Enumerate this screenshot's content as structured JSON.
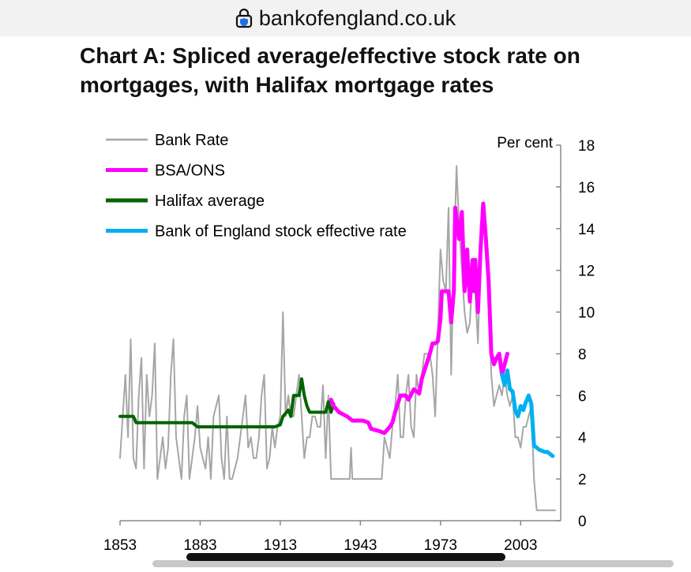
{
  "browser": {
    "url": "bankofengland.co.uk",
    "lock_icon": "lock-shield-icon"
  },
  "page": {
    "title": "Chart A: Spliced average/effective stock rate on mortgages, with Halifax mortgage rates"
  },
  "chart_data": {
    "type": "line",
    "ylabel": "Per cent",
    "xlim": [
      1853,
      2018
    ],
    "ylim": [
      0,
      18
    ],
    "x_ticks": [
      "1853",
      "1883",
      "1913",
      "1943",
      "1973",
      "2003"
    ],
    "y_ticks": [
      "0",
      "2",
      "4",
      "6",
      "8",
      "10",
      "12",
      "14",
      "16",
      "18"
    ],
    "legend_position": "top-left",
    "grid": false,
    "series": [
      {
        "name": "Bank Rate",
        "color": "#a6a6a6",
        "width": 2,
        "points": [
          [
            1853,
            3
          ],
          [
            1854,
            5
          ],
          [
            1855,
            7
          ],
          [
            1856,
            4
          ],
          [
            1857,
            8.7
          ],
          [
            1858,
            3
          ],
          [
            1859,
            2.5
          ],
          [
            1860,
            6
          ],
          [
            1861,
            7.8
          ],
          [
            1862,
            2.5
          ],
          [
            1863,
            7
          ],
          [
            1864,
            5
          ],
          [
            1865,
            6
          ],
          [
            1866,
            8.5
          ],
          [
            1867,
            2
          ],
          [
            1868,
            3
          ],
          [
            1869,
            4
          ],
          [
            1870,
            2.5
          ],
          [
            1871,
            3.5
          ],
          [
            1872,
            7
          ],
          [
            1873,
            8.7
          ],
          [
            1874,
            4
          ],
          [
            1875,
            3
          ],
          [
            1876,
            2
          ],
          [
            1877,
            5
          ],
          [
            1878,
            6
          ],
          [
            1879,
            2
          ],
          [
            1880,
            3
          ],
          [
            1881,
            4
          ],
          [
            1882,
            5.5
          ],
          [
            1883,
            3.5
          ],
          [
            1884,
            3
          ],
          [
            1885,
            2.5
          ],
          [
            1886,
            4
          ],
          [
            1887,
            2
          ],
          [
            1888,
            5
          ],
          [
            1889,
            5.5
          ],
          [
            1890,
            6
          ],
          [
            1891,
            3
          ],
          [
            1892,
            2
          ],
          [
            1893,
            5
          ],
          [
            1894,
            2
          ],
          [
            1895,
            2
          ],
          [
            1896,
            2.5
          ],
          [
            1897,
            3
          ],
          [
            1898,
            4
          ],
          [
            1899,
            5
          ],
          [
            1900,
            6
          ],
          [
            1901,
            3.5
          ],
          [
            1902,
            4
          ],
          [
            1903,
            3
          ],
          [
            1904,
            3
          ],
          [
            1905,
            4
          ],
          [
            1906,
            6
          ],
          [
            1907,
            7
          ],
          [
            1908,
            2.5
          ],
          [
            1909,
            3
          ],
          [
            1910,
            4.5
          ],
          [
            1911,
            3.5
          ],
          [
            1912,
            4.5
          ],
          [
            1913,
            5
          ],
          [
            1914,
            10
          ],
          [
            1915,
            5
          ],
          [
            1916,
            6
          ],
          [
            1917,
            5
          ],
          [
            1918,
            5
          ],
          [
            1919,
            6
          ],
          [
            1920,
            7
          ],
          [
            1921,
            5
          ],
          [
            1922,
            3
          ],
          [
            1923,
            4
          ],
          [
            1924,
            4
          ],
          [
            1925,
            5
          ],
          [
            1926,
            5
          ],
          [
            1927,
            4.5
          ],
          [
            1928,
            4.5
          ],
          [
            1929,
            6.5
          ],
          [
            1930,
            3
          ],
          [
            1931,
            6
          ],
          [
            1932,
            2
          ],
          [
            1939,
            2
          ],
          [
            1939.5,
            3.5
          ],
          [
            1940,
            2
          ],
          [
            1951,
            2
          ],
          [
            1952,
            4
          ],
          [
            1953,
            3.5
          ],
          [
            1954,
            3
          ],
          [
            1955,
            4.5
          ],
          [
            1956,
            5.5
          ],
          [
            1957,
            7
          ],
          [
            1958,
            4
          ],
          [
            1959,
            4
          ],
          [
            1960,
            6
          ],
          [
            1961,
            7
          ],
          [
            1962,
            4.5
          ],
          [
            1963,
            4
          ],
          [
            1964,
            7
          ],
          [
            1965,
            6
          ],
          [
            1966,
            7
          ],
          [
            1967,
            8
          ],
          [
            1968,
            8
          ],
          [
            1969,
            8
          ],
          [
            1970,
            7
          ],
          [
            1971,
            5
          ],
          [
            1972,
            9
          ],
          [
            1973,
            13
          ],
          [
            1974,
            11.5
          ],
          [
            1975,
            11
          ],
          [
            1976,
            15
          ],
          [
            1977,
            7
          ],
          [
            1978,
            12.5
          ],
          [
            1979,
            17
          ],
          [
            1980,
            14
          ],
          [
            1981,
            12
          ],
          [
            1982,
            10
          ],
          [
            1983,
            9
          ],
          [
            1984,
            9.5
          ],
          [
            1985,
            12
          ],
          [
            1986,
            11
          ],
          [
            1987,
            8.5
          ],
          [
            1988,
            13
          ],
          [
            1989,
            15
          ],
          [
            1990,
            14
          ],
          [
            1991,
            10.5
          ],
          [
            1992,
            7
          ],
          [
            1993,
            5.5
          ],
          [
            1994,
            6
          ],
          [
            1995,
            6.5
          ],
          [
            1996,
            6
          ],
          [
            1997,
            7
          ],
          [
            1998,
            6
          ],
          [
            1999,
            5.5
          ],
          [
            2000,
            6
          ],
          [
            2001,
            4
          ],
          [
            2002,
            4
          ],
          [
            2003,
            3.5
          ],
          [
            2004,
            4.5
          ],
          [
            2005,
            4.5
          ],
          [
            2006,
            5
          ],
          [
            2007,
            5.5
          ],
          [
            2008,
            2
          ],
          [
            2009,
            0.5
          ],
          [
            2016,
            0.5
          ]
        ]
      },
      {
        "name": "Halifax average",
        "color": "#006400",
        "width": 4,
        "points": [
          [
            1853,
            5
          ],
          [
            1858,
            5
          ],
          [
            1859,
            4.7
          ],
          [
            1880,
            4.7
          ],
          [
            1882,
            4.5
          ],
          [
            1911,
            4.5
          ],
          [
            1913,
            4.6
          ],
          [
            1914,
            5
          ],
          [
            1916,
            5.3
          ],
          [
            1917,
            5
          ],
          [
            1918,
            6
          ],
          [
            1920,
            6
          ],
          [
            1921,
            6.8
          ],
          [
            1922,
            6
          ],
          [
            1923,
            5.5
          ],
          [
            1924,
            5.2
          ],
          [
            1930,
            5.2
          ],
          [
            1931,
            5.7
          ],
          [
            1932,
            5.2
          ],
          [
            1933,
            5.6
          ]
        ]
      },
      {
        "name": "BSA/ONS",
        "color": "#ff00ff",
        "width": 5,
        "points": [
          [
            1932,
            5.8
          ],
          [
            1933,
            5.5
          ],
          [
            1935,
            5.2
          ],
          [
            1938,
            5
          ],
          [
            1940,
            4.8
          ],
          [
            1944,
            4.8
          ],
          [
            1946,
            4.7
          ],
          [
            1947,
            4.4
          ],
          [
            1950,
            4.3
          ],
          [
            1952,
            4.2
          ],
          [
            1954,
            4.5
          ],
          [
            1955,
            4.7
          ],
          [
            1956,
            5.2
          ],
          [
            1958,
            6
          ],
          [
            1960,
            6
          ],
          [
            1961,
            5.8
          ],
          [
            1963,
            6.3
          ],
          [
            1965,
            6.1
          ],
          [
            1966,
            6.8
          ],
          [
            1967,
            7.2
          ],
          [
            1969,
            8
          ],
          [
            1970,
            8.5
          ],
          [
            1971,
            8.5
          ],
          [
            1972,
            8.6
          ],
          [
            1973,
            9.7
          ],
          [
            1973.5,
            11
          ],
          [
            1976,
            11
          ],
          [
            1977,
            9.5
          ],
          [
            1978,
            11
          ],
          [
            1978.5,
            15
          ],
          [
            1979,
            14.5
          ],
          [
            1980,
            13.5
          ],
          [
            1981,
            14.8
          ],
          [
            1982,
            11
          ],
          [
            1983,
            13
          ],
          [
            1984,
            10.5
          ],
          [
            1985,
            12.5
          ],
          [
            1985.5,
            11
          ],
          [
            1986,
            12.5
          ],
          [
            1987,
            10
          ],
          [
            1988,
            13
          ],
          [
            1989,
            15.2
          ],
          [
            1990,
            13.5
          ],
          [
            1991,
            11.5
          ],
          [
            1992,
            8
          ],
          [
            1993,
            7.5
          ],
          [
            1994,
            7.8
          ],
          [
            1995,
            8
          ],
          [
            1996,
            7
          ],
          [
            1997,
            7.5
          ],
          [
            1998,
            8
          ]
        ]
      },
      {
        "name": "Bank of England stock effective rate",
        "color": "#00b0f0",
        "width": 5,
        "points": [
          [
            1996,
            7
          ],
          [
            1997,
            6.5
          ],
          [
            1998,
            7.2
          ],
          [
            1999,
            6.3
          ],
          [
            2000,
            6.2
          ],
          [
            2001,
            5.3
          ],
          [
            2002,
            5
          ],
          [
            2003,
            5.5
          ],
          [
            2004,
            5.3
          ],
          [
            2005,
            5.7
          ],
          [
            2006,
            6
          ],
          [
            2007,
            5.6
          ],
          [
            2008,
            3.6
          ],
          [
            2009,
            3.5
          ],
          [
            2010,
            3.4
          ],
          [
            2012,
            3.3
          ],
          [
            2013,
            3.3
          ],
          [
            2014,
            3.2
          ],
          [
            2015,
            3.1
          ]
        ]
      }
    ]
  }
}
